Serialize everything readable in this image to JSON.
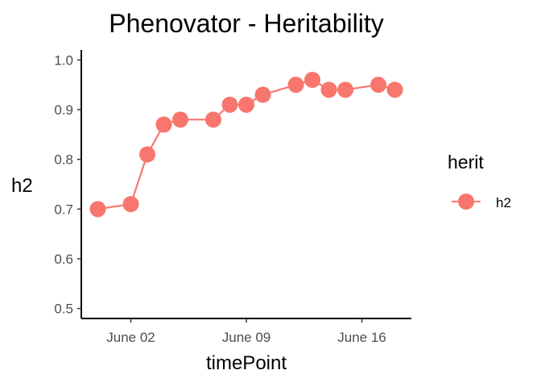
{
  "chart_data": {
    "type": "line",
    "title": "Phenovator - Heritability",
    "xlabel": "timePoint",
    "ylabel": "h2",
    "x": [
      "2018-05-31",
      "2018-06-02",
      "2018-06-03",
      "2018-06-04",
      "2018-06-05",
      "2018-06-07",
      "2018-06-08",
      "2018-06-09",
      "2018-06-10",
      "2018-06-12",
      "2018-06-13",
      "2018-06-14",
      "2018-06-15",
      "2018-06-17",
      "2018-06-18"
    ],
    "series": [
      {
        "name": "h2",
        "color": "#F8766D",
        "values": [
          0.7,
          0.71,
          0.81,
          0.87,
          0.88,
          0.88,
          0.91,
          0.91,
          0.93,
          0.95,
          0.96,
          0.94,
          0.94,
          0.95,
          0.94
        ]
      }
    ],
    "xticks": [
      {
        "date": "2018-06-02",
        "label": "June 02"
      },
      {
        "date": "2018-06-09",
        "label": "June 09"
      },
      {
        "date": "2018-06-16",
        "label": "June 16"
      }
    ],
    "yticks": [
      "0.5",
      "0.6",
      "0.7",
      "0.8",
      "0.9",
      "1.0"
    ],
    "ylim": [
      0.48,
      1.02
    ],
    "xlim": [
      "2018-05-30",
      "2018-06-19"
    ],
    "grid": false,
    "legend": {
      "title": "herit",
      "placement": "right",
      "entries": [
        "h2"
      ]
    }
  }
}
